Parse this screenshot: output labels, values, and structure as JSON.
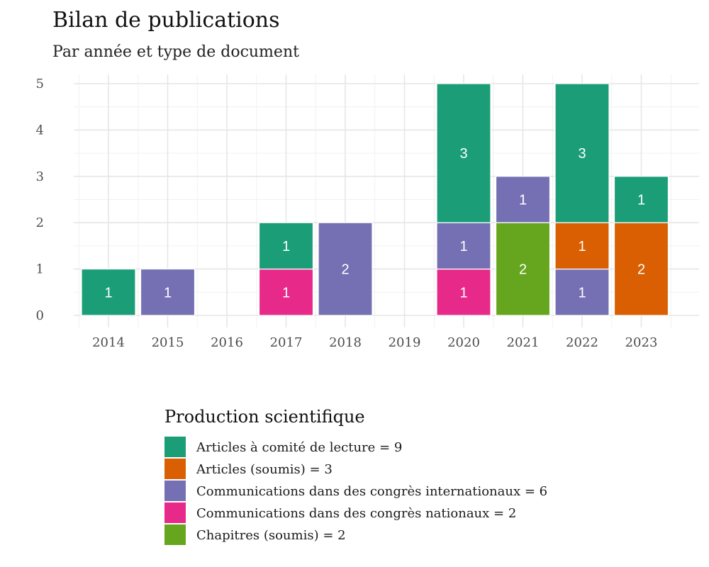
{
  "chart_data": {
    "type": "bar",
    "stacked": true,
    "title": "Bilan de publications",
    "subtitle": "Par année et type de document",
    "categories": [
      "2014",
      "2015",
      "2016",
      "2017",
      "2018",
      "2019",
      "2020",
      "2021",
      "2022",
      "2023"
    ],
    "ylim": [
      0,
      5
    ],
    "yticks": [
      0,
      1,
      2,
      3,
      4,
      5
    ],
    "grid": true,
    "legend": {
      "title": "Production scientifique",
      "position": "bottom"
    },
    "series": [
      {
        "name": "Communications dans des congrès nationaux",
        "legend_label": "Communications dans des congrès nationaux  = 2",
        "color": "#E7298A",
        "values": [
          0,
          0,
          0,
          1,
          0,
          0,
          1,
          0,
          0,
          0
        ]
      },
      {
        "name": "Chapitres (soumis)",
        "legend_label": "Chapitres (soumis) = 2",
        "color": "#66A61E",
        "values": [
          0,
          0,
          0,
          0,
          0,
          0,
          0,
          2,
          0,
          0
        ]
      },
      {
        "name": "Communications dans des congrès internationaux",
        "legend_label": "Communications dans des congrès internationaux = 6",
        "color": "#7570B3",
        "values": [
          0,
          1,
          0,
          0,
          2,
          0,
          1,
          1,
          1,
          0
        ]
      },
      {
        "name": "Articles (soumis)",
        "legend_label": "Articles (soumis) = 3",
        "color": "#D95F02",
        "values": [
          0,
          0,
          0,
          0,
          0,
          0,
          0,
          0,
          1,
          2
        ]
      },
      {
        "name": "Articles à comité de lecture",
        "legend_label": "Articles à comité de lecture = 9",
        "color": "#1B9E77",
        "values": [
          1,
          0,
          0,
          1,
          0,
          0,
          3,
          0,
          3,
          1
        ]
      }
    ],
    "legend_order": [
      "Articles à comité de lecture",
      "Articles (soumis)",
      "Communications dans des congrès internationaux",
      "Communications dans des congrès nationaux",
      "Chapitres (soumis)"
    ]
  }
}
